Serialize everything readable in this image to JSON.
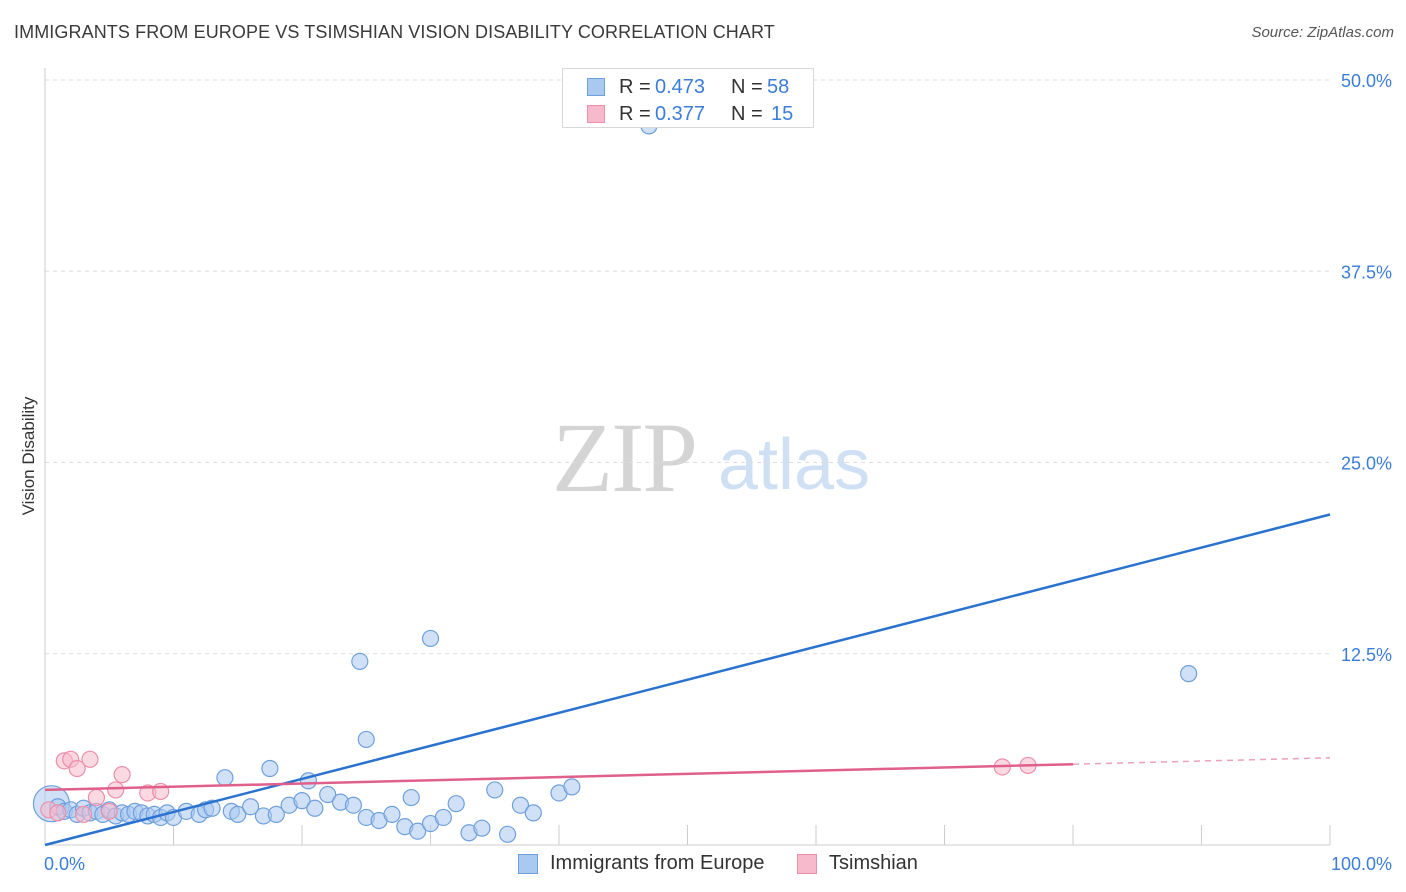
{
  "title": "IMMIGRANTS FROM EUROPE VS TSIMSHIAN VISION DISABILITY CORRELATION CHART",
  "source": "Source: ZipAtlas.com",
  "watermark": {
    "zip": "ZIP",
    "atlas": "atlas"
  },
  "legend": {
    "rows": [
      {
        "r_label": "R = ",
        "r_value": "0.473",
        "n_label": "N = ",
        "n_value": "58"
      },
      {
        "r_label": "R = ",
        "r_value": "0.377",
        "n_label": "N = ",
        "n_value": "15"
      }
    ]
  },
  "colors": {
    "blue_fill": "#a9c9f0",
    "blue_stroke": "#6fa0dc",
    "blue_line": "#2a72cf",
    "pink_fill": "#f7b9cc",
    "pink_stroke": "#eb8fab",
    "pink_line": "#e0608c",
    "grid": "#dddddd",
    "axis_label": "#3b7dd8"
  },
  "chart_data": {
    "type": "scatter",
    "title": "IMMIGRANTS FROM EUROPE VS TSIMSHIAN VISION DISABILITY CORRELATION CHART",
    "xlabel": "",
    "ylabel": "Vision Disability",
    "xlim": [
      0,
      100
    ],
    "ylim": [
      0,
      50
    ],
    "x_tick_labels": [
      "0.0%",
      "100.0%"
    ],
    "y_ticks": [
      12.5,
      25.0,
      37.5,
      50.0
    ],
    "y_tick_labels": [
      "12.5%",
      "25.0%",
      "37.5%",
      "50.0%"
    ],
    "grid": true,
    "legend_position": "bottom",
    "series": [
      {
        "name": "Immigrants from Europe",
        "r": 0.473,
        "n": 58,
        "trend": {
          "x": [
            0,
            100
          ],
          "y": [
            0.0,
            21.6
          ],
          "dashed_after": null
        },
        "points": [
          {
            "x": 0.5,
            "y": 2.7,
            "big": true
          },
          {
            "x": 1.0,
            "y": 2.5
          },
          {
            "x": 1.5,
            "y": 2.2
          },
          {
            "x": 2.0,
            "y": 2.3
          },
          {
            "x": 2.5,
            "y": 2.0
          },
          {
            "x": 3.0,
            "y": 2.4
          },
          {
            "x": 3.5,
            "y": 2.1
          },
          {
            "x": 4.0,
            "y": 2.2
          },
          {
            "x": 4.5,
            "y": 2.0
          },
          {
            "x": 5.0,
            "y": 2.3
          },
          {
            "x": 5.5,
            "y": 1.9
          },
          {
            "x": 6.0,
            "y": 2.1
          },
          {
            "x": 6.5,
            "y": 2.0
          },
          {
            "x": 7.0,
            "y": 2.2
          },
          {
            "x": 7.5,
            "y": 2.1
          },
          {
            "x": 8.0,
            "y": 1.9
          },
          {
            "x": 8.5,
            "y": 2.0
          },
          {
            "x": 9.0,
            "y": 1.8
          },
          {
            "x": 9.5,
            "y": 2.1
          },
          {
            "x": 10.0,
            "y": 1.8
          },
          {
            "x": 11.0,
            "y": 2.2
          },
          {
            "x": 12.0,
            "y": 2.0
          },
          {
            "x": 12.5,
            "y": 2.3
          },
          {
            "x": 13.0,
            "y": 2.4
          },
          {
            "x": 14.0,
            "y": 4.4
          },
          {
            "x": 14.5,
            "y": 2.2
          },
          {
            "x": 15.0,
            "y": 2.0
          },
          {
            "x": 16.0,
            "y": 2.5
          },
          {
            "x": 17.0,
            "y": 1.9
          },
          {
            "x": 18.0,
            "y": 2.0
          },
          {
            "x": 19.0,
            "y": 2.6
          },
          {
            "x": 20.0,
            "y": 2.9
          },
          {
            "x": 21.0,
            "y": 2.4
          },
          {
            "x": 22.0,
            "y": 3.3
          },
          {
            "x": 23.0,
            "y": 2.8
          },
          {
            "x": 24.0,
            "y": 2.6
          },
          {
            "x": 25.0,
            "y": 1.8
          },
          {
            "x": 26.0,
            "y": 1.6
          },
          {
            "x": 27.0,
            "y": 2.0
          },
          {
            "x": 28.0,
            "y": 1.2
          },
          {
            "x": 28.5,
            "y": 3.1
          },
          {
            "x": 29.0,
            "y": 0.9
          },
          {
            "x": 30.0,
            "y": 1.4
          },
          {
            "x": 31.0,
            "y": 1.8
          },
          {
            "x": 32.0,
            "y": 2.7
          },
          {
            "x": 33.0,
            "y": 0.8
          },
          {
            "x": 34.0,
            "y": 1.1
          },
          {
            "x": 35.0,
            "y": 3.6
          },
          {
            "x": 36.0,
            "y": 0.7
          },
          {
            "x": 37.0,
            "y": 2.6
          },
          {
            "x": 38.0,
            "y": 2.1
          },
          {
            "x": 40.0,
            "y": 3.4
          },
          {
            "x": 41.0,
            "y": 3.8
          },
          {
            "x": 17.5,
            "y": 5.0
          },
          {
            "x": 24.5,
            "y": 12.0
          },
          {
            "x": 30.0,
            "y": 13.5
          },
          {
            "x": 25.0,
            "y": 6.9
          },
          {
            "x": 47.0,
            "y": 47.0
          },
          {
            "x": 89.0,
            "y": 11.2
          },
          {
            "x": 20.5,
            "y": 4.2
          }
        ]
      },
      {
        "name": "Tsimshian",
        "r": 0.377,
        "n": 15,
        "trend": {
          "x": [
            0,
            100
          ],
          "y": [
            3.6,
            5.7
          ],
          "dashed_after": 80
        },
        "points": [
          {
            "x": 0.3,
            "y": 2.3
          },
          {
            "x": 1.0,
            "y": 2.1
          },
          {
            "x": 1.5,
            "y": 5.5
          },
          {
            "x": 2.0,
            "y": 5.6
          },
          {
            "x": 2.5,
            "y": 5.0
          },
          {
            "x": 3.0,
            "y": 2.0
          },
          {
            "x": 3.5,
            "y": 5.6
          },
          {
            "x": 4.0,
            "y": 3.1
          },
          {
            "x": 5.0,
            "y": 2.2
          },
          {
            "x": 5.5,
            "y": 3.6
          },
          {
            "x": 6.0,
            "y": 4.6
          },
          {
            "x": 8.0,
            "y": 3.4
          },
          {
            "x": 9.0,
            "y": 3.5
          },
          {
            "x": 74.5,
            "y": 5.1
          },
          {
            "x": 76.5,
            "y": 5.2
          }
        ]
      }
    ]
  }
}
